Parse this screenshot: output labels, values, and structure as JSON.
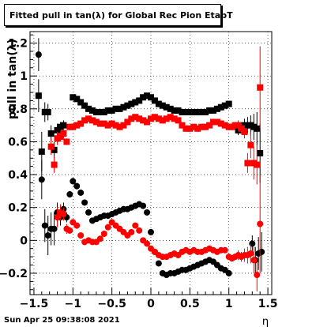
{
  "chart_data": {
    "type": "scatter",
    "title": "Fitted pull in tan(λ) for Global Rec Pion EtapT",
    "xlabel": "η",
    "ylabel": "pull in tan(λ)",
    "xlim": [
      -1.55,
      1.55
    ],
    "ylim": [
      -0.33,
      1.27
    ],
    "xticks": [
      -1.5,
      -1,
      -0.5,
      0,
      0.5,
      1,
      1.5
    ],
    "xtick_labels": [
      "−1.5",
      "−1",
      "−0.5",
      "0",
      "0.5",
      "1",
      "1.5"
    ],
    "yticks": [
      -0.2,
      0,
      0.2,
      0.4,
      0.6,
      0.8,
      1,
      1.2
    ],
    "ytick_labels": [
      "−0.2",
      "0",
      "0.2",
      "0.4",
      "0.6",
      "0.8",
      "1",
      "1.2"
    ],
    "grid": true,
    "series": [
      {
        "color": "#000000",
        "marker": "square",
        "points": [
          [
            -1.44,
            0.88,
            0.1
          ],
          [
            -1.4,
            0.54,
            0.12
          ],
          [
            -1.36,
            0.78,
            0.06
          ],
          [
            -1.32,
            0.78,
            0.05
          ],
          [
            -1.28,
            0.65,
            0.05
          ],
          [
            -1.24,
            0.55,
            0.05
          ],
          [
            -1.2,
            0.67,
            0.04
          ],
          [
            -1.16,
            0.69,
            0.03
          ],
          [
            -1.12,
            0.7,
            0.03
          ],
          [
            -1.0,
            0.87,
            0.01
          ],
          [
            -0.95,
            0.86,
            0.01
          ],
          [
            -0.9,
            0.84,
            0.01
          ],
          [
            -0.85,
            0.82,
            0.01
          ],
          [
            -0.8,
            0.8,
            0.01
          ],
          [
            -0.75,
            0.79,
            0.01
          ],
          [
            -0.7,
            0.78,
            0.01
          ],
          [
            -0.65,
            0.78,
            0.01
          ],
          [
            -0.6,
            0.78,
            0.01
          ],
          [
            -0.55,
            0.79,
            0.01
          ],
          [
            -0.5,
            0.79,
            0.01
          ],
          [
            -0.45,
            0.8,
            0.01
          ],
          [
            -0.4,
            0.8,
            0.01
          ],
          [
            -0.35,
            0.81,
            0.01
          ],
          [
            -0.3,
            0.82,
            0.01
          ],
          [
            -0.25,
            0.83,
            0.01
          ],
          [
            -0.2,
            0.84,
            0.01
          ],
          [
            -0.15,
            0.85,
            0.01
          ],
          [
            -0.1,
            0.87,
            0.01
          ],
          [
            -0.05,
            0.88,
            0.01
          ],
          [
            0.0,
            0.87,
            0.01
          ],
          [
            0.05,
            0.85,
            0.01
          ],
          [
            0.1,
            0.83,
            0.01
          ],
          [
            0.15,
            0.82,
            0.01
          ],
          [
            0.2,
            0.81,
            0.01
          ],
          [
            0.25,
            0.8,
            0.01
          ],
          [
            0.3,
            0.79,
            0.01
          ],
          [
            0.35,
            0.79,
            0.01
          ],
          [
            0.4,
            0.78,
            0.01
          ],
          [
            0.45,
            0.78,
            0.01
          ],
          [
            0.5,
            0.78,
            0.01
          ],
          [
            0.55,
            0.78,
            0.01
          ],
          [
            0.6,
            0.78,
            0.01
          ],
          [
            0.65,
            0.78,
            0.01
          ],
          [
            0.7,
            0.78,
            0.01
          ],
          [
            0.75,
            0.79,
            0.01
          ],
          [
            0.8,
            0.79,
            0.01
          ],
          [
            0.85,
            0.8,
            0.01
          ],
          [
            0.9,
            0.81,
            0.01
          ],
          [
            0.95,
            0.82,
            0.01
          ],
          [
            1.0,
            0.83,
            0.01
          ],
          [
            1.12,
            0.67,
            0.03
          ],
          [
            1.16,
            0.68,
            0.03
          ],
          [
            1.2,
            0.7,
            0.04
          ],
          [
            1.24,
            0.7,
            0.05
          ],
          [
            1.28,
            0.7,
            0.06
          ],
          [
            1.32,
            0.69,
            0.08
          ],
          [
            1.36,
            0.68,
            0.1
          ],
          [
            1.4,
            0.53,
            0.18
          ]
        ]
      },
      {
        "color": "#ff0000",
        "marker": "square",
        "points": [
          [
            -1.28,
            0.57,
            0.05
          ],
          [
            -1.24,
            0.46,
            0.05
          ],
          [
            -1.2,
            0.62,
            0.04
          ],
          [
            -1.16,
            0.63,
            0.03
          ],
          [
            -1.12,
            0.65,
            0.03
          ],
          [
            -1.08,
            0.6,
            0.02
          ],
          [
            -1.04,
            0.69,
            0.02
          ],
          [
            -1.0,
            0.69,
            0.01
          ],
          [
            -0.95,
            0.7,
            0.01
          ],
          [
            -0.9,
            0.71,
            0.01
          ],
          [
            -0.85,
            0.73,
            0.01
          ],
          [
            -0.8,
            0.74,
            0.01
          ],
          [
            -0.75,
            0.73,
            0.01
          ],
          [
            -0.7,
            0.72,
            0.01
          ],
          [
            -0.65,
            0.71,
            0.01
          ],
          [
            -0.6,
            0.71,
            0.01
          ],
          [
            -0.55,
            0.7,
            0.01
          ],
          [
            -0.5,
            0.71,
            0.01
          ],
          [
            -0.45,
            0.7,
            0.01
          ],
          [
            -0.4,
            0.69,
            0.01
          ],
          [
            -0.35,
            0.7,
            0.01
          ],
          [
            -0.3,
            0.72,
            0.01
          ],
          [
            -0.25,
            0.74,
            0.01
          ],
          [
            -0.2,
            0.75,
            0.01
          ],
          [
            -0.15,
            0.74,
            0.01
          ],
          [
            -0.1,
            0.73,
            0.01
          ],
          [
            -0.05,
            0.72,
            0.01
          ],
          [
            0.0,
            0.74,
            0.01
          ],
          [
            0.05,
            0.75,
            0.01
          ],
          [
            0.1,
            0.74,
            0.01
          ],
          [
            0.15,
            0.73,
            0.01
          ],
          [
            0.2,
            0.74,
            0.01
          ],
          [
            0.25,
            0.75,
            0.01
          ],
          [
            0.3,
            0.74,
            0.01
          ],
          [
            0.35,
            0.73,
            0.01
          ],
          [
            0.4,
            0.7,
            0.01
          ],
          [
            0.45,
            0.68,
            0.01
          ],
          [
            0.5,
            0.68,
            0.01
          ],
          [
            0.55,
            0.69,
            0.01
          ],
          [
            0.6,
            0.68,
            0.01
          ],
          [
            0.65,
            0.69,
            0.01
          ],
          [
            0.7,
            0.69,
            0.01
          ],
          [
            0.75,
            0.7,
            0.01
          ],
          [
            0.8,
            0.72,
            0.01
          ],
          [
            0.85,
            0.72,
            0.01
          ],
          [
            0.9,
            0.71,
            0.01
          ],
          [
            0.95,
            0.7,
            0.01
          ],
          [
            1.0,
            0.69,
            0.01
          ],
          [
            1.04,
            0.69,
            0.02
          ],
          [
            1.08,
            0.7,
            0.02
          ],
          [
            1.12,
            0.7,
            0.03
          ],
          [
            1.16,
            0.68,
            0.03
          ],
          [
            1.2,
            0.66,
            0.04
          ],
          [
            1.24,
            0.47,
            0.06
          ],
          [
            1.28,
            0.58,
            0.08
          ],
          [
            1.32,
            0.47,
            0.1
          ],
          [
            1.36,
            0.46,
            0.12
          ],
          [
            1.4,
            0.93,
            0.25
          ]
        ]
      },
      {
        "color": "#000000",
        "marker": "circle",
        "points": [
          [
            -1.44,
            1.13,
            0.1
          ],
          [
            -1.4,
            0.37,
            0.12
          ],
          [
            -1.36,
            0.09,
            0.1
          ],
          [
            -1.32,
            0.03,
            0.12
          ],
          [
            -1.28,
            0.07,
            0.1
          ],
          [
            -1.24,
            0.07,
            0.1
          ],
          [
            -1.2,
            0.17,
            0.06
          ],
          [
            -1.16,
            0.14,
            0.05
          ],
          [
            -1.12,
            0.19,
            0.04
          ],
          [
            -1.08,
            0.14,
            0.03
          ],
          [
            -1.04,
            0.28,
            0.02
          ],
          [
            -1.0,
            0.36,
            0.02
          ],
          [
            -0.95,
            0.33,
            0.02
          ],
          [
            -0.9,
            0.29,
            0.01
          ],
          [
            -0.85,
            0.23,
            0.01
          ],
          [
            -0.8,
            0.17,
            0.01
          ],
          [
            -0.75,
            0.12,
            0.01
          ],
          [
            -0.7,
            0.13,
            0.01
          ],
          [
            -0.65,
            0.14,
            0.01
          ],
          [
            -0.6,
            0.15,
            0.01
          ],
          [
            -0.55,
            0.15,
            0.01
          ],
          [
            -0.5,
            0.16,
            0.01
          ],
          [
            -0.45,
            0.17,
            0.01
          ],
          [
            -0.4,
            0.18,
            0.01
          ],
          [
            -0.35,
            0.19,
            0.01
          ],
          [
            -0.3,
            0.19,
            0.01
          ],
          [
            -0.25,
            0.2,
            0.01
          ],
          [
            -0.2,
            0.21,
            0.01
          ],
          [
            -0.15,
            0.22,
            0.01
          ],
          [
            -0.1,
            0.21,
            0.01
          ],
          [
            -0.05,
            0.17,
            0.01
          ],
          [
            0.0,
            0.05,
            0.01
          ],
          [
            0.05,
            -0.07,
            0.01
          ],
          [
            0.1,
            -0.14,
            0.01
          ],
          [
            0.15,
            -0.2,
            0.01
          ],
          [
            0.2,
            -0.21,
            0.01
          ],
          [
            0.25,
            -0.2,
            0.01
          ],
          [
            0.3,
            -0.2,
            0.01
          ],
          [
            0.35,
            -0.19,
            0.01
          ],
          [
            0.4,
            -0.18,
            0.01
          ],
          [
            0.45,
            -0.18,
            0.01
          ],
          [
            0.5,
            -0.17,
            0.01
          ],
          [
            0.55,
            -0.16,
            0.01
          ],
          [
            0.6,
            -0.15,
            0.01
          ],
          [
            0.65,
            -0.14,
            0.01
          ],
          [
            0.7,
            -0.13,
            0.01
          ],
          [
            0.75,
            -0.12,
            0.01
          ],
          [
            0.8,
            -0.13,
            0.01
          ],
          [
            0.85,
            -0.15,
            0.01
          ],
          [
            0.9,
            -0.17,
            0.01
          ],
          [
            0.95,
            -0.18,
            0.01
          ],
          [
            1.0,
            -0.2,
            0.01
          ],
          [
            1.3,
            -0.02,
            0.05
          ],
          [
            1.34,
            -0.12,
            0.08
          ],
          [
            1.38,
            -0.08,
            0.1
          ],
          [
            1.42,
            -0.07,
            0.12
          ]
        ]
      },
      {
        "color": "#ff0000",
        "marker": "circle",
        "points": [
          [
            -1.2,
            0.14,
            0.06
          ],
          [
            -1.16,
            0.17,
            0.05
          ],
          [
            -1.12,
            0.16,
            0.04
          ],
          [
            -1.08,
            0.07,
            0.03
          ],
          [
            -1.04,
            0.06,
            0.02
          ],
          [
            -1.0,
            0.11,
            0.02
          ],
          [
            -0.95,
            0.09,
            0.02
          ],
          [
            -0.9,
            0.03,
            0.01
          ],
          [
            -0.85,
            -0.01,
            0.01
          ],
          [
            -0.8,
            0.0,
            0.01
          ],
          [
            -0.75,
            -0.01,
            0.01
          ],
          [
            -0.7,
            -0.01,
            0.01
          ],
          [
            -0.65,
            0.01,
            0.01
          ],
          [
            -0.6,
            0.04,
            0.01
          ],
          [
            -0.55,
            0.08,
            0.01
          ],
          [
            -0.5,
            0.11,
            0.01
          ],
          [
            -0.45,
            0.09,
            0.01
          ],
          [
            -0.4,
            0.07,
            0.01
          ],
          [
            -0.35,
            0.05,
            0.01
          ],
          [
            -0.3,
            0.03,
            0.01
          ],
          [
            -0.25,
            0.05,
            0.01
          ],
          [
            -0.2,
            0.09,
            0.01
          ],
          [
            -0.15,
            0.06,
            0.01
          ],
          [
            -0.1,
            0.0,
            0.01
          ],
          [
            -0.05,
            -0.02,
            0.01
          ],
          [
            0.0,
            -0.05,
            0.01
          ],
          [
            0.05,
            -0.07,
            0.01
          ],
          [
            0.1,
            -0.09,
            0.01
          ],
          [
            0.15,
            -0.1,
            0.01
          ],
          [
            0.2,
            -0.1,
            0.01
          ],
          [
            0.25,
            -0.09,
            0.01
          ],
          [
            0.3,
            -0.08,
            0.01
          ],
          [
            0.35,
            -0.09,
            0.01
          ],
          [
            0.4,
            -0.07,
            0.01
          ],
          [
            0.45,
            -0.06,
            0.01
          ],
          [
            0.5,
            -0.07,
            0.01
          ],
          [
            0.55,
            -0.06,
            0.01
          ],
          [
            0.6,
            -0.07,
            0.01
          ],
          [
            0.65,
            -0.07,
            0.01
          ],
          [
            0.7,
            -0.06,
            0.01
          ],
          [
            0.75,
            -0.05,
            0.01
          ],
          [
            0.8,
            -0.06,
            0.01
          ],
          [
            0.85,
            -0.07,
            0.01
          ],
          [
            0.9,
            -0.06,
            0.01
          ],
          [
            0.95,
            -0.06,
            0.01
          ],
          [
            1.0,
            -0.1,
            0.01
          ],
          [
            1.04,
            -0.11,
            0.02
          ],
          [
            1.08,
            -0.1,
            0.02
          ],
          [
            1.12,
            -0.09,
            0.03
          ],
          [
            1.16,
            -0.1,
            0.03
          ],
          [
            1.2,
            -0.09,
            0.04
          ],
          [
            1.24,
            -0.09,
            0.05
          ],
          [
            1.28,
            -0.08,
            0.06
          ],
          [
            1.32,
            -0.12,
            0.08
          ],
          [
            1.36,
            -0.21,
            0.1
          ],
          [
            1.4,
            0.1,
            0.3
          ]
        ]
      }
    ]
  },
  "footer": {
    "timestamp": "Sun Apr 25 09:38:08 2021"
  }
}
